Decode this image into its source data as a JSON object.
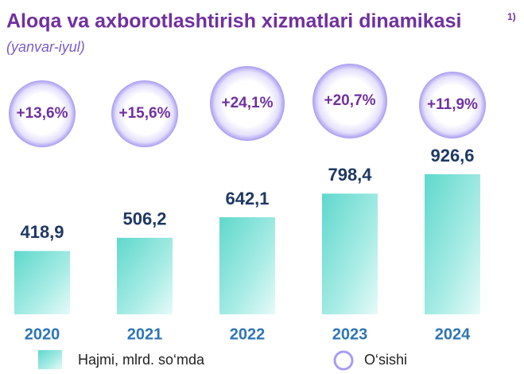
{
  "chart_data": {
    "type": "bar",
    "title": "Aloqa va axborotlashtirish xizmatlari dinamikasi",
    "title_note": "1)",
    "subtitle": "(yanvar-iyul)",
    "categories": [
      "2020",
      "2021",
      "2022",
      "2023",
      "2024"
    ],
    "series": [
      {
        "name": "Hajmi, mlrd. so‘mda",
        "color": "#5fd8cc",
        "values": [
          418.9,
          506.2,
          642.1,
          798.4,
          926.6
        ],
        "value_labels": [
          "418,9",
          "506,2",
          "642,1",
          "798,4",
          "926,6"
        ]
      },
      {
        "name": "O‘sishi",
        "color": "#a89cf0",
        "values": [
          13.6,
          15.6,
          24.1,
          20.7,
          11.9
        ],
        "value_labels": [
          "+13,6%",
          "+15,6%",
          "+24,1%",
          "+20,7%",
          "+11,9%"
        ]
      }
    ]
  }
}
